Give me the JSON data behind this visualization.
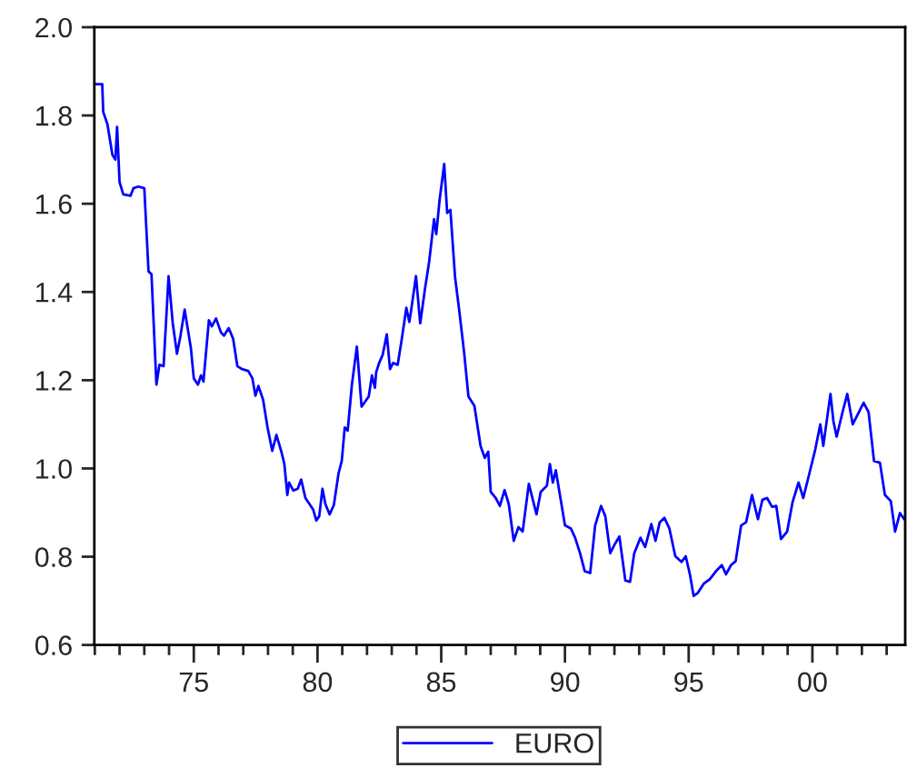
{
  "chart_data": {
    "type": "line",
    "x": [
      1970.98,
      1971.3,
      1971.34,
      1971.51,
      1971.71,
      1971.83,
      1971.9,
      1972.0,
      1972.15,
      1972.44,
      1972.56,
      1972.76,
      1973.0,
      1973.17,
      1973.29,
      1973.49,
      1973.61,
      1973.78,
      1973.98,
      1974.15,
      1974.32,
      1974.46,
      1974.63,
      1974.88,
      1975.0,
      1975.17,
      1975.29,
      1975.39,
      1975.61,
      1975.73,
      1975.9,
      1976.1,
      1976.22,
      1976.41,
      1976.59,
      1976.76,
      1976.95,
      1977.2,
      1977.37,
      1977.49,
      1977.61,
      1977.8,
      1977.98,
      1978.17,
      1978.34,
      1978.54,
      1978.66,
      1978.78,
      1978.85,
      1979.02,
      1979.2,
      1979.34,
      1979.51,
      1979.68,
      1979.83,
      1979.95,
      1980.07,
      1980.2,
      1980.32,
      1980.49,
      1980.66,
      1980.85,
      1980.98,
      1981.1,
      1981.22,
      1981.39,
      1981.59,
      1981.78,
      1982.07,
      1982.2,
      1982.32,
      1982.37,
      1982.49,
      1982.63,
      1982.8,
      1982.93,
      1983.05,
      1983.24,
      1983.41,
      1983.59,
      1983.71,
      1983.78,
      1983.98,
      1984.15,
      1984.34,
      1984.51,
      1984.71,
      1984.8,
      1984.93,
      1985.12,
      1985.24,
      1985.37,
      1985.56,
      1985.73,
      1985.93,
      1986.1,
      1986.34,
      1986.59,
      1986.76,
      1986.9,
      1987.0,
      1987.2,
      1987.37,
      1987.56,
      1987.73,
      1987.93,
      1988.12,
      1988.29,
      1988.54,
      1988.85,
      1989.02,
      1989.27,
      1989.39,
      1989.51,
      1989.63,
      1989.83,
      1990.0,
      1990.24,
      1990.41,
      1990.61,
      1990.8,
      1991.02,
      1991.22,
      1991.46,
      1991.63,
      1991.83,
      1992.02,
      1992.2,
      1992.44,
      1992.63,
      1992.8,
      1993.05,
      1993.24,
      1993.49,
      1993.66,
      1993.83,
      1994.02,
      1994.22,
      1994.46,
      1994.71,
      1994.88,
      1995.05,
      1995.2,
      1995.37,
      1995.61,
      1995.85,
      1996.1,
      1996.34,
      1996.51,
      1996.71,
      1996.9,
      1997.12,
      1997.32,
      1997.56,
      1997.8,
      1997.98,
      1998.17,
      1998.37,
      1998.54,
      1998.73,
      1998.98,
      1999.2,
      1999.44,
      1999.63,
      1999.88,
      2000.12,
      2000.32,
      2000.44,
      2000.73,
      2000.85,
      2000.98,
      2001.22,
      2001.41,
      2001.63,
      2001.88,
      2002.07,
      2002.27,
      2002.49,
      2002.73,
      2002.93,
      2003.17,
      2003.34,
      2003.54,
      2003.71
    ],
    "series": [
      {
        "name": "EURO",
        "color": "#0000ff",
        "values": [
          1.871,
          1.871,
          1.808,
          1.78,
          1.711,
          1.7,
          1.774,
          1.649,
          1.621,
          1.618,
          1.635,
          1.639,
          1.635,
          1.447,
          1.44,
          1.19,
          1.235,
          1.232,
          1.436,
          1.329,
          1.26,
          1.3,
          1.36,
          1.274,
          1.204,
          1.19,
          1.211,
          1.197,
          1.336,
          1.322,
          1.34,
          1.308,
          1.301,
          1.318,
          1.294,
          1.232,
          1.225,
          1.221,
          1.204,
          1.165,
          1.187,
          1.156,
          1.093,
          1.04,
          1.076,
          1.038,
          1.01,
          0.94,
          0.968,
          0.95,
          0.954,
          0.975,
          0.933,
          0.919,
          0.906,
          0.882,
          0.892,
          0.954,
          0.919,
          0.896,
          0.917,
          0.989,
          1.017,
          1.093,
          1.086,
          1.19,
          1.276,
          1.14,
          1.163,
          1.211,
          1.183,
          1.218,
          1.239,
          1.257,
          1.304,
          1.225,
          1.239,
          1.235,
          1.295,
          1.364,
          1.332,
          1.357,
          1.436,
          1.329,
          1.406,
          1.468,
          1.565,
          1.531,
          1.607,
          1.69,
          1.579,
          1.586,
          1.433,
          1.357,
          1.26,
          1.163,
          1.142,
          1.051,
          1.024,
          1.038,
          0.947,
          0.933,
          0.915,
          0.951,
          0.919,
          0.836,
          0.867,
          0.857,
          0.965,
          0.896,
          0.947,
          0.961,
          1.01,
          0.968,
          0.996,
          0.929,
          0.871,
          0.864,
          0.843,
          0.808,
          0.767,
          0.763,
          0.871,
          0.915,
          0.892,
          0.808,
          0.829,
          0.846,
          0.746,
          0.743,
          0.808,
          0.843,
          0.822,
          0.874,
          0.836,
          0.878,
          0.888,
          0.864,
          0.801,
          0.788,
          0.801,
          0.76,
          0.711,
          0.718,
          0.739,
          0.749,
          0.767,
          0.781,
          0.76,
          0.781,
          0.79,
          0.871,
          0.878,
          0.94,
          0.885,
          0.929,
          0.933,
          0.913,
          0.915,
          0.84,
          0.857,
          0.924,
          0.968,
          0.933,
          0.989,
          1.044,
          1.1,
          1.051,
          1.169,
          1.107,
          1.072,
          1.128,
          1.169,
          1.1,
          1.128,
          1.149,
          1.128,
          1.017,
          1.013,
          0.94,
          0.926,
          0.857,
          0.899,
          0.885
        ]
      }
    ],
    "xlim": [
      1970.98,
      2003.75
    ],
    "xticks": [
      {
        "value": 1971,
        "label": null
      },
      {
        "value": 1972,
        "label": null
      },
      {
        "value": 1973,
        "label": null
      },
      {
        "value": 1974,
        "label": null
      },
      {
        "value": 1975,
        "label": "75"
      },
      {
        "value": 1976,
        "label": null
      },
      {
        "value": 1977,
        "label": null
      },
      {
        "value": 1978,
        "label": null
      },
      {
        "value": 1979,
        "label": null
      },
      {
        "value": 1980,
        "label": "80"
      },
      {
        "value": 1981,
        "label": null
      },
      {
        "value": 1982,
        "label": null
      },
      {
        "value": 1983,
        "label": null
      },
      {
        "value": 1984,
        "label": null
      },
      {
        "value": 1985,
        "label": "85"
      },
      {
        "value": 1986,
        "label": null
      },
      {
        "value": 1987,
        "label": null
      },
      {
        "value": 1988,
        "label": null
      },
      {
        "value": 1989,
        "label": null
      },
      {
        "value": 1990,
        "label": "90"
      },
      {
        "value": 1991,
        "label": null
      },
      {
        "value": 1992,
        "label": null
      },
      {
        "value": 1993,
        "label": null
      },
      {
        "value": 1994,
        "label": null
      },
      {
        "value": 1995,
        "label": "95"
      },
      {
        "value": 1996,
        "label": null
      },
      {
        "value": 1997,
        "label": null
      },
      {
        "value": 1998,
        "label": null
      },
      {
        "value": 1999,
        "label": null
      },
      {
        "value": 2000,
        "label": "00"
      },
      {
        "value": 2001,
        "label": null
      },
      {
        "value": 2002,
        "label": null
      },
      {
        "value": 2003,
        "label": null
      }
    ],
    "ylim": [
      0.6,
      2.0
    ],
    "yticks": [
      {
        "value": 0.6,
        "label": "0.6"
      },
      {
        "value": 0.8,
        "label": "0.8"
      },
      {
        "value": 1.0,
        "label": "1.0"
      },
      {
        "value": 1.2,
        "label": "1.2"
      },
      {
        "value": 1.4,
        "label": "1.4"
      },
      {
        "value": 1.6,
        "label": "1.6"
      },
      {
        "value": 1.8,
        "label": "1.8"
      },
      {
        "value": 2.0,
        "label": "2.0"
      }
    ],
    "grid": false,
    "legend": "bottom",
    "marker": "none",
    "line_style": "solid"
  }
}
